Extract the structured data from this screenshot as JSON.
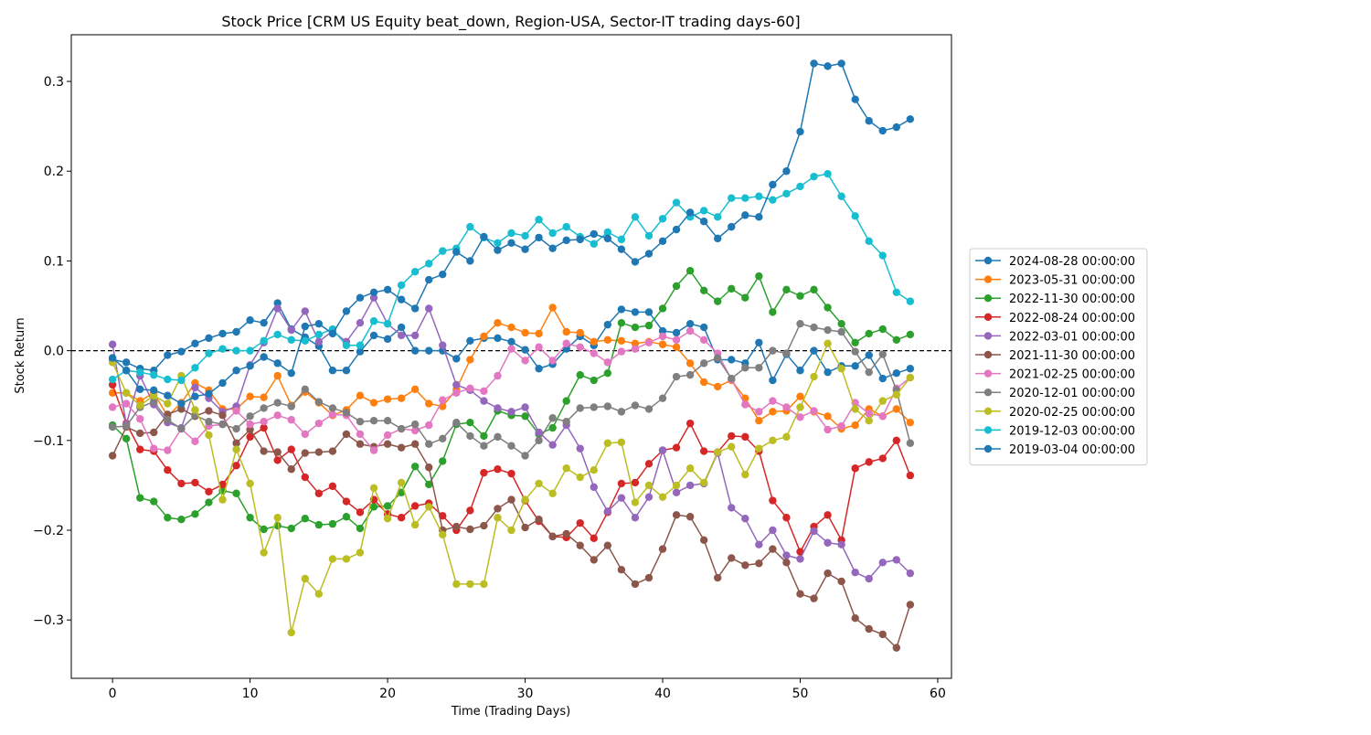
{
  "chart_data": {
    "type": "line",
    "title": "Stock Price [CRM US Equity beat_down, Region-USA, Sector-IT trading days-60]",
    "xlabel": "Time (Trading Days)",
    "ylabel": "Stock Return",
    "xlim": [
      -3,
      61
    ],
    "ylim": [
      -0.365,
      0.352
    ],
    "xticks": [
      0,
      10,
      20,
      30,
      40,
      50,
      60
    ],
    "yticks": [
      -0.3,
      -0.2,
      -0.1,
      0.0,
      0.1,
      0.2,
      0.3
    ],
    "xtick_labels": [
      "0",
      "10",
      "20",
      "30",
      "40",
      "50",
      "60"
    ],
    "ytick_labels": [
      "−0.3",
      "−0.2",
      "−0.1",
      "0.0",
      "0.1",
      "0.2",
      "0.3"
    ],
    "reference_line": {
      "y": 0.0,
      "style": "dashed",
      "color": "#000000"
    },
    "grid": false,
    "legend_position": "right-outside",
    "series": [
      {
        "name": "2024-08-28 00:00:00",
        "color": "#1f77b4",
        "values": [
          -0.01,
          -0.013,
          -0.02,
          -0.022,
          -0.005,
          -0.001,
          0.008,
          0.014,
          0.019,
          0.021,
          0.034,
          0.031,
          0.053,
          0.024,
          0.015,
          0.005,
          -0.022,
          -0.022,
          -0.001,
          0.017,
          0.013,
          0.026,
          0.0,
          0.0,
          0.0,
          -0.009,
          0.011,
          0.014,
          0.014,
          0.01,
          0.001,
          -0.02,
          -0.015,
          0.002,
          0.016,
          0.006,
          0.029,
          0.046,
          0.043,
          0.043,
          0.022,
          0.02,
          0.03,
          0.026,
          -0.01,
          -0.01,
          -0.014,
          0.009,
          -0.033,
          -0.004,
          -0.022,
          0.0,
          -0.024,
          -0.017,
          -0.017,
          -0.005,
          -0.031,
          -0.025,
          -0.02
        ]
      },
      {
        "name": "2023-05-31 00:00:00",
        "color": "#ff7f0e",
        "values": [
          -0.047,
          -0.047,
          -0.056,
          -0.047,
          -0.073,
          -0.058,
          -0.036,
          -0.044,
          -0.065,
          -0.065,
          -0.051,
          -0.052,
          -0.028,
          -0.061,
          -0.046,
          -0.058,
          -0.072,
          -0.066,
          -0.05,
          -0.058,
          -0.054,
          -0.053,
          -0.043,
          -0.059,
          -0.062,
          -0.043,
          -0.01,
          0.016,
          0.031,
          0.026,
          0.02,
          0.019,
          0.048,
          0.021,
          0.02,
          0.01,
          0.012,
          0.011,
          0.008,
          0.01,
          0.007,
          0.004,
          -0.014,
          -0.035,
          -0.04,
          -0.033,
          -0.053,
          -0.078,
          -0.068,
          -0.067,
          -0.051,
          -0.068,
          -0.073,
          -0.087,
          -0.083,
          -0.065,
          -0.073,
          -0.065,
          -0.08
        ]
      },
      {
        "name": "2022-11-30 00:00:00",
        "color": "#2ca02c",
        "values": [
          -0.083,
          -0.098,
          -0.164,
          -0.168,
          -0.186,
          -0.188,
          -0.182,
          -0.169,
          -0.156,
          -0.159,
          -0.186,
          -0.199,
          -0.195,
          -0.198,
          -0.187,
          -0.194,
          -0.193,
          -0.185,
          -0.198,
          -0.174,
          -0.173,
          -0.158,
          -0.129,
          -0.149,
          -0.123,
          -0.082,
          -0.08,
          -0.095,
          -0.067,
          -0.072,
          -0.073,
          -0.093,
          -0.086,
          -0.056,
          -0.027,
          -0.033,
          -0.025,
          0.031,
          0.026,
          0.028,
          0.047,
          0.072,
          0.089,
          0.067,
          0.055,
          0.069,
          0.059,
          0.083,
          0.043,
          0.068,
          0.061,
          0.068,
          0.048,
          0.03,
          0.009,
          0.019,
          0.024,
          0.012,
          0.018
        ]
      },
      {
        "name": "2022-08-24 00:00:00",
        "color": "#d62728",
        "values": [
          -0.038,
          -0.081,
          -0.11,
          -0.112,
          -0.133,
          -0.148,
          -0.147,
          -0.157,
          -0.149,
          -0.128,
          -0.096,
          -0.086,
          -0.122,
          -0.11,
          -0.141,
          -0.159,
          -0.151,
          -0.168,
          -0.18,
          -0.166,
          -0.182,
          -0.186,
          -0.173,
          -0.17,
          -0.184,
          -0.2,
          -0.178,
          -0.136,
          -0.132,
          -0.137,
          -0.167,
          -0.19,
          -0.207,
          -0.208,
          -0.192,
          -0.209,
          -0.18,
          -0.148,
          -0.147,
          -0.126,
          -0.111,
          -0.108,
          -0.081,
          -0.112,
          -0.113,
          -0.095,
          -0.096,
          -0.112,
          -0.167,
          -0.186,
          -0.224,
          -0.196,
          -0.183,
          -0.211,
          -0.131,
          -0.124,
          -0.12,
          -0.1,
          -0.139
        ]
      },
      {
        "name": "2022-03-01 00:00:00",
        "color": "#9467bd",
        "values": [
          0.007,
          -0.082,
          -0.028,
          -0.06,
          -0.08,
          -0.086,
          -0.041,
          -0.053,
          -0.068,
          -0.062,
          -0.016,
          0.009,
          0.047,
          0.023,
          0.044,
          0.01,
          0.022,
          0.01,
          0.031,
          0.059,
          0.03,
          0.017,
          0.017,
          0.047,
          0.006,
          -0.038,
          -0.044,
          -0.056,
          -0.064,
          -0.068,
          -0.063,
          -0.091,
          -0.105,
          -0.083,
          -0.109,
          -0.152,
          -0.179,
          -0.164,
          -0.186,
          -0.163,
          -0.111,
          -0.158,
          -0.15,
          -0.148,
          -0.114,
          -0.175,
          -0.187,
          -0.216,
          -0.2,
          -0.228,
          -0.232,
          -0.201,
          -0.214,
          -0.216,
          -0.247,
          -0.254,
          -0.236,
          -0.233,
          -0.248
        ]
      },
      {
        "name": "2021-11-30 00:00:00",
        "color": "#8c564b",
        "values": [
          -0.117,
          -0.085,
          -0.092,
          -0.091,
          -0.071,
          -0.065,
          -0.073,
          -0.067,
          -0.072,
          -0.103,
          -0.088,
          -0.112,
          -0.113,
          -0.132,
          -0.114,
          -0.113,
          -0.112,
          -0.093,
          -0.104,
          -0.107,
          -0.104,
          -0.108,
          -0.104,
          -0.13,
          -0.2,
          -0.196,
          -0.199,
          -0.195,
          -0.176,
          -0.166,
          -0.197,
          -0.188,
          -0.207,
          -0.204,
          -0.217,
          -0.233,
          -0.217,
          -0.244,
          -0.26,
          -0.253,
          -0.221,
          -0.183,
          -0.185,
          -0.211,
          -0.253,
          -0.231,
          -0.239,
          -0.237,
          -0.221,
          -0.236,
          -0.271,
          -0.276,
          -0.248,
          -0.257,
          -0.298,
          -0.31,
          -0.316,
          -0.331,
          -0.283
        ]
      },
      {
        "name": "2021-02-25 00:00:00",
        "color": "#e377c2",
        "values": [
          -0.063,
          -0.059,
          -0.076,
          -0.109,
          -0.111,
          -0.087,
          -0.101,
          -0.084,
          -0.082,
          -0.067,
          -0.082,
          -0.079,
          -0.072,
          -0.077,
          -0.093,
          -0.081,
          -0.071,
          -0.072,
          -0.093,
          -0.111,
          -0.094,
          -0.087,
          -0.089,
          -0.083,
          -0.055,
          -0.047,
          -0.042,
          -0.045,
          -0.028,
          0.002,
          -0.011,
          0.004,
          -0.011,
          0.008,
          0.004,
          -0.003,
          -0.013,
          -0.001,
          0.002,
          0.009,
          0.016,
          0.012,
          0.022,
          0.012,
          -0.003,
          -0.032,
          -0.06,
          -0.068,
          -0.056,
          -0.063,
          -0.074,
          -0.067,
          -0.088,
          -0.084,
          -0.058,
          -0.07,
          -0.073,
          -0.042,
          -0.03
        ]
      },
      {
        "name": "2020-12-01 00:00:00",
        "color": "#7f7f7f",
        "values": [
          -0.085,
          -0.084,
          -0.063,
          -0.057,
          -0.077,
          -0.087,
          -0.072,
          -0.079,
          -0.082,
          -0.087,
          -0.073,
          -0.064,
          -0.058,
          -0.062,
          -0.043,
          -0.057,
          -0.064,
          -0.069,
          -0.079,
          -0.078,
          -0.078,
          -0.087,
          -0.082,
          -0.104,
          -0.098,
          -0.08,
          -0.095,
          -0.106,
          -0.096,
          -0.106,
          -0.117,
          -0.1,
          -0.075,
          -0.079,
          -0.064,
          -0.063,
          -0.062,
          -0.068,
          -0.061,
          -0.065,
          -0.053,
          -0.029,
          -0.027,
          -0.014,
          -0.008,
          -0.031,
          -0.019,
          -0.019,
          0.0,
          -0.003,
          0.03,
          0.026,
          0.023,
          0.021,
          -0.001,
          -0.024,
          -0.004,
          -0.044,
          -0.103
        ]
      },
      {
        "name": "2020-02-25 00:00:00",
        "color": "#bcbd22",
        "values": [
          -0.013,
          -0.047,
          -0.061,
          -0.05,
          -0.059,
          -0.028,
          -0.066,
          -0.094,
          -0.166,
          -0.11,
          -0.148,
          -0.225,
          -0.186,
          -0.314,
          -0.254,
          -0.271,
          -0.232,
          -0.232,
          -0.225,
          -0.153,
          -0.187,
          -0.147,
          -0.194,
          -0.174,
          -0.205,
          -0.26,
          -0.26,
          -0.26,
          -0.186,
          -0.2,
          -0.166,
          -0.148,
          -0.159,
          -0.131,
          -0.141,
          -0.133,
          -0.103,
          -0.102,
          -0.169,
          -0.15,
          -0.163,
          -0.15,
          -0.131,
          -0.147,
          -0.113,
          -0.107,
          -0.138,
          -0.109,
          -0.1,
          -0.096,
          -0.063,
          -0.029,
          0.008,
          -0.02,
          -0.065,
          -0.078,
          -0.056,
          -0.049,
          -0.03
        ]
      },
      {
        "name": "2019-12-03 00:00:00",
        "color": "#17becf",
        "values": [
          -0.032,
          -0.022,
          -0.024,
          -0.027,
          -0.032,
          -0.033,
          -0.019,
          -0.003,
          0.002,
          0.0,
          0.0,
          0.011,
          0.018,
          0.012,
          0.011,
          0.018,
          0.024,
          0.006,
          0.006,
          0.033,
          0.03,
          0.073,
          0.088,
          0.097,
          0.111,
          0.114,
          0.138,
          0.126,
          0.12,
          0.131,
          0.128,
          0.146,
          0.131,
          0.138,
          0.127,
          0.119,
          0.132,
          0.124,
          0.149,
          0.128,
          0.147,
          0.165,
          0.149,
          0.156,
          0.149,
          0.17,
          0.17,
          0.172,
          0.168,
          0.175,
          0.183,
          0.194,
          0.197,
          0.172,
          0.15,
          0.122,
          0.106,
          0.065,
          0.055
        ]
      },
      {
        "name": "2019-03-04 00:00:00",
        "color": "#1f77b4",
        "values": [
          -0.008,
          -0.022,
          -0.043,
          -0.044,
          -0.05,
          -0.059,
          -0.051,
          -0.048,
          -0.036,
          -0.022,
          -0.017,
          -0.007,
          -0.014,
          -0.025,
          0.027,
          0.03,
          0.019,
          0.044,
          0.059,
          0.065,
          0.068,
          0.057,
          0.047,
          0.079,
          0.085,
          0.11,
          0.1,
          0.127,
          0.112,
          0.12,
          0.113,
          0.126,
          0.114,
          0.123,
          0.124,
          0.13,
          0.125,
          0.113,
          0.099,
          0.108,
          0.122,
          0.135,
          0.154,
          0.144,
          0.125,
          0.138,
          0.151,
          0.149,
          0.185,
          0.2,
          0.244,
          0.32,
          0.317,
          0.32,
          0.28,
          0.256,
          0.245,
          0.249,
          0.258
        ]
      }
    ]
  }
}
